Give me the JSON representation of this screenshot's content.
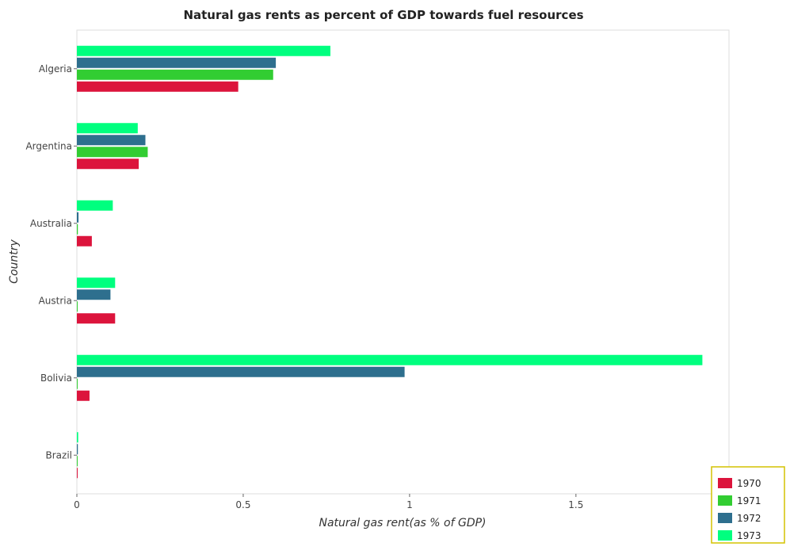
{
  "chart_data": {
    "type": "bar",
    "orientation": "horizontal",
    "title": "Natural gas rents as percent of GDP towards fuel resources",
    "xlabel": "Natural gas rent(as % of GDP)",
    "ylabel": "Country",
    "categories": [
      "Algeria",
      "Argentina",
      "Australia",
      "Austria",
      "Bolivia",
      "Brazil"
    ],
    "series": [
      {
        "name": "1970",
        "color": "#dc143c",
        "values": [
          0.485,
          0.186,
          0.045,
          0.115,
          0.038,
          0.001
        ]
      },
      {
        "name": "1971",
        "color": "#32cd32",
        "values": [
          0.59,
          0.213,
          0.003,
          0.002,
          0.002,
          0.002
        ]
      },
      {
        "name": "1972",
        "color": "#2e6f8e",
        "values": [
          0.598,
          0.206,
          0.005,
          0.101,
          0.985,
          0.003
        ]
      },
      {
        "name": "1973",
        "color": "#00ff7f",
        "values": [
          0.762,
          0.183,
          0.108,
          0.115,
          1.88,
          0.004
        ]
      }
    ],
    "xlim": [
      0,
      1.96
    ],
    "xticks": [
      0,
      0.5,
      1,
      1.5
    ],
    "xtick_labels": [
      "0",
      "0.5",
      "1",
      "1.5"
    ],
    "grid": false,
    "legend_position": "bottom-right"
  }
}
